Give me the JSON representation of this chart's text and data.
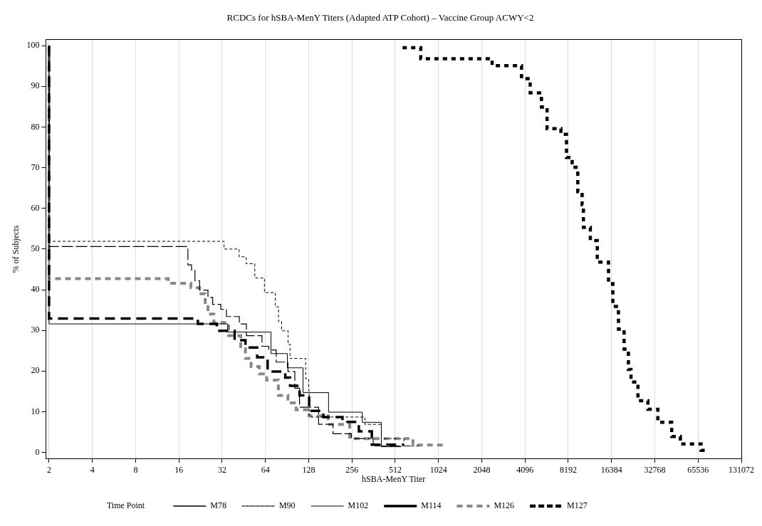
{
  "chart_data": {
    "type": "step",
    "title": "RCDCs for hSBA-MenY Titers (Adapted ATP Cohort) – Vaccine Group ACWY<2",
    "xlabel": "hSBA-MenY Titer",
    "ylabel": "% of Subjects",
    "legend": "bottom",
    "legend_title": "Time Point",
    "log": "x",
    "grid": "x",
    "xlim": [
      1.9,
      131072
    ],
    "xticks": [
      2,
      4,
      8,
      16,
      32,
      64,
      128,
      256,
      512,
      1024,
      2048,
      4096,
      8192,
      16384,
      32768,
      65536,
      131072
    ],
    "ylim": [
      -1.5,
      101.5
    ],
    "yticks": [
      0,
      10,
      20,
      30,
      40,
      50,
      60,
      70,
      80,
      90,
      100
    ],
    "series": [
      {
        "name": "M78",
        "color": "#000000",
        "line_style": "solid",
        "x": [
          2,
          2,
          35,
          70,
          91,
          117,
          176,
          302,
          410,
          564
        ],
        "values": [
          100,
          31.6,
          29.6,
          24.3,
          20.8,
          14.7,
          9.9,
          7.4,
          1.4,
          1.4
        ]
      },
      {
        "name": "M90",
        "color": "#000000",
        "line_style": "dashed",
        "x": [
          2,
          2,
          33,
          42,
          47,
          54,
          63,
          75,
          79,
          83,
          92,
          95,
          122,
          128,
          129,
          315,
          410,
          588,
          765
        ],
        "values": [
          100,
          51.9,
          50.0,
          48.1,
          46.4,
          42.9,
          39.3,
          35.8,
          32.2,
          29.9,
          26.6,
          23.1,
          18.1,
          15.2,
          8.7,
          6.9,
          3.4,
          1.6,
          1.6
        ]
      },
      {
        "name": "M102",
        "color": "#000000",
        "line_style": "dashed",
        "x": [
          2,
          2,
          18.5,
          19.6,
          20.7,
          22.3,
          25.5,
          27.5,
          31.3,
          34.3,
          42.2,
          47.2,
          60.6,
          67.6,
          76.1,
          91.8,
          102.5,
          110.6,
          150,
          189,
          254,
          360,
          657
        ],
        "values": [
          100,
          50.6,
          46.1,
          44.9,
          42.2,
          39.9,
          38.1,
          36.4,
          35.2,
          33.4,
          31.6,
          28.7,
          26.1,
          25.2,
          22.2,
          19.9,
          15.8,
          11.1,
          6.9,
          4.6,
          3.4,
          1.6,
          1.6
        ]
      },
      {
        "name": "M114",
        "color": "#000000",
        "line_style": "dashed",
        "x": [
          2,
          2,
          21.7,
          29.4,
          39.1,
          46.5,
          56.1,
          66.3,
          88,
          95,
          110.6,
          129,
          162,
          220,
          286,
          352,
          588
        ],
        "values": [
          100,
          32.9,
          31.6,
          29.9,
          27.6,
          25.8,
          23.4,
          19.9,
          18.4,
          16.4,
          14.0,
          10.2,
          8.7,
          7.5,
          5.2,
          1.9,
          1.9
        ]
      },
      {
        "name": "M126",
        "color": "#888888",
        "line_style": "dashed",
        "x": [
          2,
          2,
          13.5,
          19.4,
          22.3,
          24.4,
          25.5,
          28.0,
          35.5,
          43.1,
          46.5,
          50.9,
          58.1,
          65.3,
          78.8,
          91.8,
          104.7,
          129,
          175,
          247,
          680,
          1144
        ],
        "values": [
          100,
          42.7,
          41.6,
          40.5,
          39.0,
          36.4,
          34.0,
          31.9,
          28.7,
          25.5,
          23.1,
          21.1,
          19.3,
          17.8,
          14.0,
          12.2,
          10.5,
          9.0,
          6.9,
          3.4,
          1.8,
          1.8
        ]
      },
      {
        "name": "M127",
        "color": "#000000",
        "line_style": "dashed",
        "x": [
          576,
          771,
          2419,
          3875,
          4451,
          5330,
          5833,
          7281,
          7967,
          8718,
          9540,
          10225,
          10440,
          11665,
          13033,
          15608,
          16728,
          18305,
          20031,
          21469,
          22381,
          25009,
          29334,
          34406,
          42949,
          49336,
          68745,
          75281
        ],
        "values": [
          99.5,
          96.8,
          95.1,
          91.9,
          88.4,
          84.9,
          79.6,
          78.2,
          72.5,
          70.1,
          64.1,
          60.9,
          55.3,
          52.1,
          46.8,
          41.5,
          35.9,
          30.3,
          25.4,
          20.4,
          17.3,
          12.7,
          10.6,
          7.4,
          3.9,
          2.1,
          0.5,
          0.5
        ]
      }
    ]
  }
}
